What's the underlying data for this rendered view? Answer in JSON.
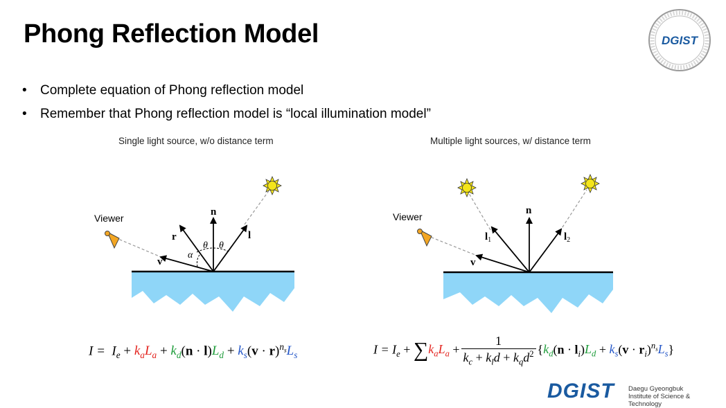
{
  "slide": {
    "title": "Phong Reflection Model",
    "bullets": [
      "Complete equation of Phong reflection model",
      "Remember that Phong reflection model is “local illumination model”"
    ],
    "bullet_marker": "•"
  },
  "left_figure": {
    "caption": "Single light source, w/o distance term",
    "viewer_label": "Viewer",
    "labels": {
      "n": "n",
      "r": "r",
      "l": "l",
      "v": "v",
      "theta1": "θ",
      "theta2": "θ",
      "alpha": "α"
    }
  },
  "right_figure": {
    "caption": "Multiple light sources, w/ distance term",
    "viewer_label": "Viewer",
    "labels": {
      "n": "n",
      "l1": "l",
      "l1_sub": "1",
      "l2": "l",
      "l2_sub": "2",
      "v": "v"
    }
  },
  "colors": {
    "water": "#8fd6f8",
    "sun": "#f4e51a",
    "viewer": "#f3a623",
    "k_a": "#e3231e",
    "k_d": "#1e9c3a",
    "k_s": "#2356c8",
    "logo_blue": "#1a5aa0"
  },
  "logos": {
    "seal_text": "DGIST",
    "footer_name": "DGIST",
    "footer_line1": "Daegu Gyeongbuk",
    "footer_line2": "Institute of Science & Technology"
  }
}
